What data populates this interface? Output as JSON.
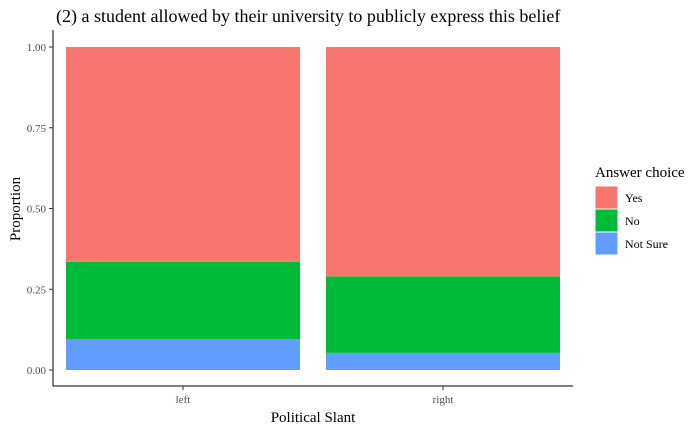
{
  "chart_data": {
    "type": "bar",
    "stacked": true,
    "title": "(2) a student allowed by their university to publicly express this belief",
    "xlabel": "Political Slant",
    "ylabel": "Proportion",
    "ylim": [
      0,
      1
    ],
    "yticks": [
      "0.00",
      "0.25",
      "0.50",
      "0.75",
      "1.00"
    ],
    "categories": [
      "left",
      "right"
    ],
    "series": [
      {
        "name": "Not Sure",
        "color": "#619CFF",
        "values": [
          0.095,
          0.053
        ]
      },
      {
        "name": "No",
        "color": "#00BA38",
        "values": [
          0.24,
          0.237
        ]
      },
      {
        "name": "Yes",
        "color": "#F8766D",
        "values": [
          0.665,
          0.71
        ]
      }
    ],
    "legend": {
      "title": "Answer choice",
      "position": "right",
      "order": [
        "Yes",
        "No",
        "Not Sure"
      ]
    },
    "grid": false
  }
}
